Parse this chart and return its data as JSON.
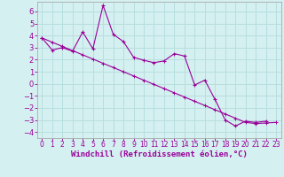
{
  "xlabel": "Windchill (Refroidissement éolien,°C)",
  "background_color": "#d4f0f0",
  "grid_color": "#b8dede",
  "line_color": "#990099",
  "spine_color": "#aaaaaa",
  "x_ticks": [
    0,
    1,
    2,
    3,
    4,
    5,
    6,
    7,
    8,
    9,
    10,
    11,
    12,
    13,
    14,
    15,
    16,
    17,
    18,
    19,
    20,
    21,
    22,
    23
  ],
  "y_ticks": [
    -4,
    -3,
    -2,
    -1,
    0,
    1,
    2,
    3,
    4,
    5,
    6
  ],
  "xlim": [
    -0.5,
    23.5
  ],
  "ylim": [
    -4.5,
    6.8
  ],
  "series1_x": [
    0,
    1,
    2,
    3,
    4,
    5,
    6,
    7,
    8,
    9,
    10,
    11,
    12,
    13,
    14,
    15,
    16,
    17,
    18,
    19,
    20,
    21,
    22
  ],
  "series1_y": [
    3.8,
    2.8,
    3.0,
    2.7,
    4.3,
    2.9,
    6.5,
    4.1,
    3.5,
    2.2,
    1.95,
    1.75,
    1.9,
    2.5,
    2.3,
    -0.1,
    0.3,
    -1.3,
    -3.0,
    -3.5,
    -3.1,
    -3.2,
    -3.1
  ],
  "series2_x": [
    0,
    1,
    2,
    3,
    4,
    5,
    6,
    7,
    8,
    9,
    10,
    11,
    12,
    13,
    14,
    15,
    16,
    17,
    18,
    19,
    20,
    21,
    22,
    23
  ],
  "series2_y": [
    3.8,
    3.45,
    3.1,
    2.75,
    2.4,
    2.05,
    1.7,
    1.35,
    1.0,
    0.65,
    0.3,
    -0.05,
    -0.4,
    -0.75,
    -1.1,
    -1.45,
    -1.8,
    -2.15,
    -2.5,
    -2.85,
    -3.2,
    -3.3,
    -3.25,
    -3.2
  ],
  "xlabel_fontsize": 6.5,
  "tick_fontsize_x": 5.5,
  "tick_fontsize_y": 6
}
